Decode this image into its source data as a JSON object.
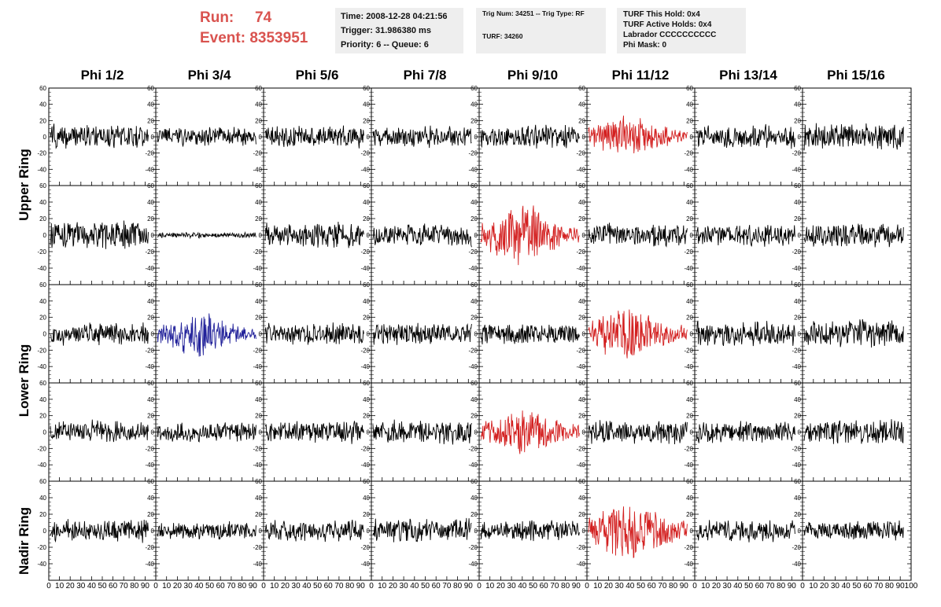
{
  "header": {
    "run_label": "Run:",
    "run_value": "74",
    "event_label": "Event:",
    "event_value": "8353951"
  },
  "info_box_1": {
    "time": "Time: 2008-12-28 04:21:56",
    "trigger": "Trigger: 31.986380 ms",
    "priority": "Priority: 6 -- Queue: 6"
  },
  "info_box_2": {
    "trig": "Trig Num: 34251 -- Trig Type: RF",
    "turf": "TURF: 34260"
  },
  "info_box_3": {
    "hold": "TURF This Hold: 0x4",
    "active": "TURF Active Holds: 0x4",
    "labrador": "Labrador CCCCCCCCCC",
    "phimask": "Phi Mask: 0"
  },
  "columns": [
    "Phi 1/2",
    "Phi 3/4",
    "Phi 5/6",
    "Phi 7/8",
    "Phi 9/10",
    "Phi 11/12",
    "Phi 13/14",
    "Phi 15/16"
  ],
  "rows": [
    "Upper Ring",
    "Lower Ring",
    "Nadir Ring"
  ],
  "colors": {
    "normal": "#000000",
    "triggered": "#d32020",
    "highlight": "#22229a"
  },
  "chart_data": {
    "type": "line",
    "xlim": [
      0,
      100
    ],
    "ylim": [
      -60,
      60
    ],
    "y_ticks": [
      -40,
      -20,
      0,
      20,
      40,
      60
    ],
    "x_ticks": [
      0,
      10,
      20,
      30,
      40,
      50,
      60,
      70,
      80,
      90,
      100
    ],
    "panels": [
      {
        "row": 0,
        "col": 0,
        "color": "black",
        "amp": 14
      },
      {
        "row": 0,
        "col": 1,
        "color": "black",
        "amp": 11
      },
      {
        "row": 0,
        "col": 2,
        "color": "black",
        "amp": 12
      },
      {
        "row": 0,
        "col": 3,
        "color": "black",
        "amp": 12
      },
      {
        "row": 0,
        "col": 4,
        "color": "black",
        "amp": 13
      },
      {
        "row": 0,
        "col": 5,
        "color": "red",
        "amp": 16
      },
      {
        "row": 0,
        "col": 6,
        "color": "black",
        "amp": 14
      },
      {
        "row": 0,
        "col": 7,
        "color": "black",
        "amp": 15
      },
      {
        "row": 1,
        "col": 0,
        "color": "black",
        "amp": 16
      },
      {
        "row": 1,
        "col": 1,
        "color": "black",
        "amp": 3
      },
      {
        "row": 1,
        "col": 2,
        "color": "black",
        "amp": 14
      },
      {
        "row": 1,
        "col": 3,
        "color": "black",
        "amp": 13
      },
      {
        "row": 1,
        "col": 4,
        "color": "red",
        "amp": 22
      },
      {
        "row": 1,
        "col": 5,
        "color": "black",
        "amp": 13
      },
      {
        "row": 1,
        "col": 6,
        "color": "black",
        "amp": 12
      },
      {
        "row": 1,
        "col": 7,
        "color": "black",
        "amp": 14
      },
      {
        "row": 2,
        "col": 0,
        "color": "black",
        "amp": 13
      },
      {
        "row": 2,
        "col": 1,
        "color": "blue",
        "amp": 16
      },
      {
        "row": 2,
        "col": 2,
        "color": "black",
        "amp": 13
      },
      {
        "row": 2,
        "col": 3,
        "color": "black",
        "amp": 12
      },
      {
        "row": 2,
        "col": 4,
        "color": "black",
        "amp": 12
      },
      {
        "row": 2,
        "col": 5,
        "color": "red",
        "amp": 20
      },
      {
        "row": 2,
        "col": 6,
        "color": "black",
        "amp": 14
      },
      {
        "row": 2,
        "col": 7,
        "color": "black",
        "amp": 16
      },
      {
        "row": 3,
        "col": 0,
        "color": "black",
        "amp": 13
      },
      {
        "row": 3,
        "col": 1,
        "color": "black",
        "amp": 11
      },
      {
        "row": 3,
        "col": 2,
        "color": "black",
        "amp": 13
      },
      {
        "row": 3,
        "col": 3,
        "color": "black",
        "amp": 13
      },
      {
        "row": 3,
        "col": 4,
        "color": "red",
        "amp": 18
      },
      {
        "row": 3,
        "col": 5,
        "color": "black",
        "amp": 14
      },
      {
        "row": 3,
        "col": 6,
        "color": "black",
        "amp": 12
      },
      {
        "row": 3,
        "col": 7,
        "color": "black",
        "amp": 14
      },
      {
        "row": 4,
        "col": 0,
        "color": "black",
        "amp": 13
      },
      {
        "row": 4,
        "col": 1,
        "color": "black",
        "amp": 10
      },
      {
        "row": 4,
        "col": 2,
        "color": "black",
        "amp": 12
      },
      {
        "row": 4,
        "col": 3,
        "color": "black",
        "amp": 13
      },
      {
        "row": 4,
        "col": 4,
        "color": "black",
        "amp": 12
      },
      {
        "row": 4,
        "col": 5,
        "color": "red",
        "amp": 24
      },
      {
        "row": 4,
        "col": 6,
        "color": "black",
        "amp": 12
      },
      {
        "row": 4,
        "col": 7,
        "color": "black",
        "amp": 12
      }
    ]
  }
}
